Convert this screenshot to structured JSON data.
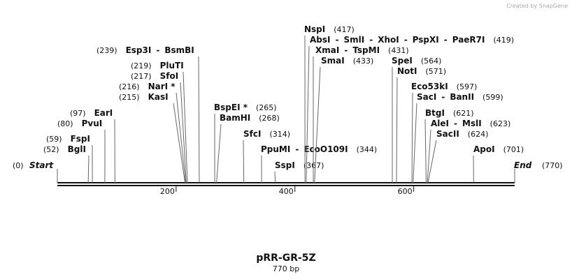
{
  "map": {
    "title": "pRR-GR-5Z",
    "subtitle": "770 bp",
    "watermark": "Created by SnapGene",
    "separator": "-",
    "start": {
      "label": "Start",
      "position": {
        "value": 0,
        "label": "(0)"
      }
    },
    "end": {
      "label": "End",
      "position": {
        "value": 770,
        "label": "(770)"
      }
    },
    "ticks": [
      200,
      400,
      600
    ],
    "enzymes": [
      {
        "names": [
          "BglI"
        ],
        "position": {
          "value": 52,
          "label": "(52)"
        }
      },
      {
        "names": [
          "FspI"
        ],
        "position": {
          "value": 59,
          "label": "(59)"
        }
      },
      {
        "names": [
          "PvuI"
        ],
        "position": {
          "value": 80,
          "label": "(80)"
        }
      },
      {
        "names": [
          "EarI"
        ],
        "position": {
          "value": 97,
          "label": "(97)"
        }
      },
      {
        "names": [
          "KasI"
        ],
        "position": {
          "value": 215,
          "label": "(215)"
        }
      },
      {
        "names": [
          "NarI *"
        ],
        "position": {
          "value": 216,
          "label": "(216)"
        }
      },
      {
        "names": [
          "SfoI"
        ],
        "position": {
          "value": 217,
          "label": "(217)"
        }
      },
      {
        "names": [
          "PluTI"
        ],
        "position": {
          "value": 219,
          "label": "(219)"
        }
      },
      {
        "names": [
          "Esp3I",
          "BsmBI"
        ],
        "position": {
          "value": 239,
          "label": "(239)"
        }
      },
      {
        "names": [
          "BspEI *"
        ],
        "position": {
          "value": 265,
          "label": "(265)"
        }
      },
      {
        "names": [
          "BamHI"
        ],
        "position": {
          "value": 268,
          "label": "(268)"
        }
      },
      {
        "names": [
          "SfcI"
        ],
        "position": {
          "value": 314,
          "label": "(314)"
        }
      },
      {
        "names": [
          "PpuMI",
          "EcoO109I"
        ],
        "position": {
          "value": 344,
          "label": "(344)"
        }
      },
      {
        "names": [
          "SspI"
        ],
        "position": {
          "value": 367,
          "label": "(367)"
        }
      },
      {
        "names": [
          "NspI"
        ],
        "position": {
          "value": 417,
          "label": "(417)"
        }
      },
      {
        "names": [
          "AbsI",
          "SmlI",
          "XhoI",
          "PspXI",
          "PaeR7I"
        ],
        "position": {
          "value": 419,
          "label": "(419)"
        }
      },
      {
        "names": [
          "XmaI",
          "TspMI"
        ],
        "position": {
          "value": 431,
          "label": "(431)"
        }
      },
      {
        "names": [
          "SmaI"
        ],
        "position": {
          "value": 433,
          "label": "(433)"
        }
      },
      {
        "names": [
          "SpeI"
        ],
        "position": {
          "value": 564,
          "label": "(564)"
        }
      },
      {
        "names": [
          "NotI"
        ],
        "position": {
          "value": 571,
          "label": "(571)"
        }
      },
      {
        "names": [
          "Eco53kI"
        ],
        "position": {
          "value": 597,
          "label": "(597)"
        }
      },
      {
        "names": [
          "SacI",
          "BanII"
        ],
        "position": {
          "value": 599,
          "label": "(599)"
        }
      },
      {
        "names": [
          "BtgI"
        ],
        "position": {
          "value": 621,
          "label": "(621)"
        }
      },
      {
        "names": [
          "AleI",
          "MslI"
        ],
        "position": {
          "value": 623,
          "label": "(623)"
        }
      },
      {
        "names": [
          "SacII"
        ],
        "position": {
          "value": 624,
          "label": "(624)"
        }
      },
      {
        "names": [
          "ApoI"
        ],
        "position": {
          "value": 701,
          "label": "(701)"
        }
      }
    ]
  }
}
